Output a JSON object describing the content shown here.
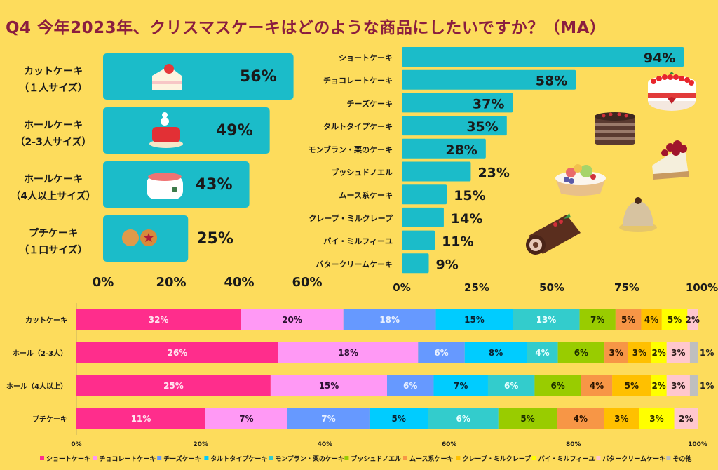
{
  "title": "Q4 今年2023年、クリスマスケーキはどのような商品にしたいですか？（MA）",
  "chart_data": [
    {
      "type": "bar",
      "orientation": "horizontal",
      "id": "size",
      "categories": [
        [
          "カットケーキ",
          "（１人サイズ）"
        ],
        [
          "ホールケーキ",
          "（2-3人サイズ）"
        ],
        [
          "ホールケーキ",
          "（4人以上サイズ）"
        ],
        [
          "プチケーキ",
          "（１口サイズ）"
        ]
      ],
      "values": [
        56,
        49,
        43,
        25
      ],
      "value_labels": [
        "56%",
        "49%",
        "43%",
        "25%"
      ],
      "icons": [
        "shortcake-slice-icon",
        "whole-cake-snowman-icon",
        "white-cake-holly-icon",
        "petit-tarts-icon"
      ],
      "xlim": [
        0,
        60
      ],
      "xticks": [
        "0%",
        "20%",
        "40%",
        "60%"
      ],
      "bar_color": "#1bbcc9"
    },
    {
      "type": "bar",
      "orientation": "horizontal",
      "id": "type",
      "categories": [
        "ショートケーキ",
        "チョコレートケーキ",
        "チーズケーキ",
        "タルトタイプケーキ",
        "モンブラン・栗のケーキ",
        "ブッシュドノエル",
        "ムース系ケーキ",
        "クレープ・ミルクレープ",
        "パイ・ミルフィーユ",
        "バタークリームケーキ"
      ],
      "values": [
        94,
        58,
        37,
        35,
        28,
        23,
        15,
        14,
        11,
        9
      ],
      "value_labels": [
        "94%",
        "58%",
        "37%",
        "35%",
        "28%",
        "23%",
        "15%",
        "14%",
        "11%",
        "9%"
      ],
      "xlim": [
        0,
        100
      ],
      "xticks": [
        "0%",
        "25%",
        "50%",
        "75%",
        "100%"
      ],
      "bar_color": "#1bbcc9"
    },
    {
      "type": "bar",
      "orientation": "horizontal",
      "stacked": "percent",
      "id": "cross",
      "categories": [
        "カットケーキ",
        "ホール（2-3人）",
        "ホール（4人以上）",
        "プチケーキ"
      ],
      "xticks": [
        "0%",
        "20%",
        "40%",
        "60%",
        "80%",
        "100%"
      ],
      "legend_position": "bottom",
      "series": [
        {
          "name": "ショートケーキ",
          "color": "#ff2d8c",
          "label_color": "#ffe6f0",
          "values": [
            32,
            26,
            25,
            11
          ]
        },
        {
          "name": "チョコレートケーキ",
          "color": "#ff99f5",
          "label_color": "#2a1030",
          "values": [
            20,
            18,
            15,
            7
          ]
        },
        {
          "name": "チーズケーキ",
          "color": "#6699ff",
          "label_color": "#e8f0ff",
          "values": [
            18,
            6,
            6,
            7
          ]
        },
        {
          "name": "タルトタイプケーキ",
          "color": "#00ccff",
          "label_color": "#0a2030",
          "values": [
            15,
            8,
            7,
            5
          ]
        },
        {
          "name": "モンブラン・栗のケーキ",
          "color": "#33cccc",
          "label_color": "#e8ffff",
          "values": [
            13,
            4,
            6,
            6
          ]
        },
        {
          "name": "ブッシュドノエル",
          "color": "#99cc00",
          "label_color": "#1a2a00",
          "values": [
            7,
            6,
            6,
            5
          ]
        },
        {
          "name": "ムース系ケーキ",
          "color": "#f79646",
          "label_color": "#2a1400",
          "values": [
            5,
            3,
            4,
            4
          ]
        },
        {
          "name": "クレープ・ミルクレープ",
          "color": "#ffc000",
          "label_color": "#2a2000",
          "values": [
            4,
            3,
            5,
            3
          ]
        },
        {
          "name": "パイ・ミルフィーユ",
          "color": "#ffff00",
          "label_color": "#2a2a00",
          "values": [
            5,
            2,
            2,
            3
          ]
        },
        {
          "name": "バタークリームケーキ",
          "color": "#ffc7ce",
          "label_color": "#2a1a1a",
          "values": [
            2,
            3,
            3,
            2
          ]
        },
        {
          "name": "その他",
          "color": "#bfbfbf",
          "label_color": "#222222",
          "values": [
            0,
            1,
            1,
            0
          ]
        }
      ]
    }
  ],
  "decorations": [
    "strawberry-shortcake-icon",
    "chocolate-layer-cake-icon",
    "cherry-cheesecake-icon",
    "fruit-tart-icon",
    "mont-blanc-icon",
    "buche-de-noel-icon"
  ]
}
